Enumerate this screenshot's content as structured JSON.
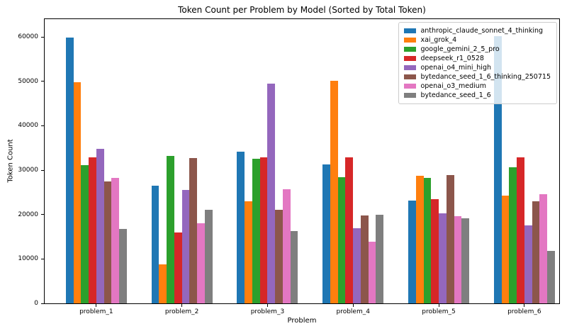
{
  "chart_data": {
    "type": "bar",
    "title": "Token Count per Problem by Model (Sorted by Total Token)",
    "xlabel": "Problem",
    "ylabel": "Token Count",
    "categories": [
      "problem_1",
      "problem_2",
      "problem_3",
      "problem_4",
      "problem_5",
      "problem_6"
    ],
    "series": [
      {
        "name": "anthropic_claude_sonnet_4_thinking",
        "color": "#1f77b4",
        "values": [
          59900,
          26500,
          34100,
          31300,
          23200,
          60200
        ]
      },
      {
        "name": "xai_grok_4",
        "color": "#ff7f0e",
        "values": [
          49800,
          8800,
          23000,
          50100,
          28700,
          24200
        ]
      },
      {
        "name": "google_gemini_2_5_pro",
        "color": "#2ca02c",
        "values": [
          31200,
          33200,
          32500,
          28400,
          28300,
          30600
        ]
      },
      {
        "name": "deepseek_r1_0528",
        "color": "#d62728",
        "values": [
          32900,
          16000,
          32900,
          32900,
          23400,
          32900
        ]
      },
      {
        "name": "openai_o4_mini_high",
        "color": "#9467bd",
        "values": [
          34800,
          25500,
          49500,
          16900,
          20200,
          17600
        ]
      },
      {
        "name": "bytedance_seed_1_6_thinking_250715",
        "color": "#8c564b",
        "values": [
          27500,
          32700,
          21100,
          19800,
          28900,
          23000
        ]
      },
      {
        "name": "openai_o3_medium",
        "color": "#e377c2",
        "values": [
          28200,
          18100,
          25700,
          13900,
          19700,
          24600
        ]
      },
      {
        "name": "bytedance_seed_1_6",
        "color": "#7f7f7f",
        "values": [
          16800,
          21100,
          16300,
          20000,
          19200,
          11800
        ]
      }
    ],
    "ylim": [
      0,
      64000
    ],
    "yticks": [
      0,
      10000,
      20000,
      30000,
      40000,
      50000,
      60000
    ],
    "legend_position": "upper right",
    "grid": false,
    "spine_color": "#000000",
    "background_color": "#ffffff"
  }
}
